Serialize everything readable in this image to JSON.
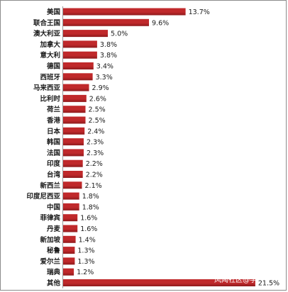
{
  "chart_data": {
    "type": "bar",
    "orientation": "horizontal",
    "categories": [
      "美国",
      "联合王国",
      "澳大利亚",
      "加拿大",
      "意大利",
      "德国",
      "西班牙",
      "马来西亚",
      "比利时",
      "荷兰",
      "香港",
      "日本",
      "韩国",
      "法国",
      "印度",
      "台湾",
      "新西兰",
      "印度尼西亚",
      "中国",
      "菲律宾",
      "丹麦",
      "新加坡",
      "秘鲁",
      "爱尔兰",
      "瑞典",
      "其他"
    ],
    "values": [
      13.7,
      9.6,
      5.0,
      3.8,
      3.8,
      3.4,
      3.3,
      2.9,
      2.6,
      2.5,
      2.5,
      2.4,
      2.3,
      2.3,
      2.2,
      2.2,
      2.1,
      1.8,
      1.8,
      1.6,
      1.6,
      1.4,
      1.3,
      1.3,
      1.2,
      21.5
    ],
    "value_labels": [
      "13.7%",
      "9.6%",
      "5.0%",
      "3.8%",
      "3.8%",
      "3.4%",
      "3.3%",
      "2.9%",
      "2.6%",
      "2.5%",
      "2.5%",
      "2.4%",
      "2.3%",
      "2.3%",
      "2.2%",
      "2.2%",
      "2.1%",
      "1.8%",
      "1.8%",
      "1.6%",
      "1.6%",
      "1.4%",
      "1.3%",
      "1.3%",
      "1.2%",
      "21.5%"
    ],
    "xlim": [
      0,
      24
    ],
    "grid": false,
    "bar_color": "#c0292b",
    "bar_color_dark": "#8e1a1c"
  },
  "watermark": "风闻社区@学"
}
